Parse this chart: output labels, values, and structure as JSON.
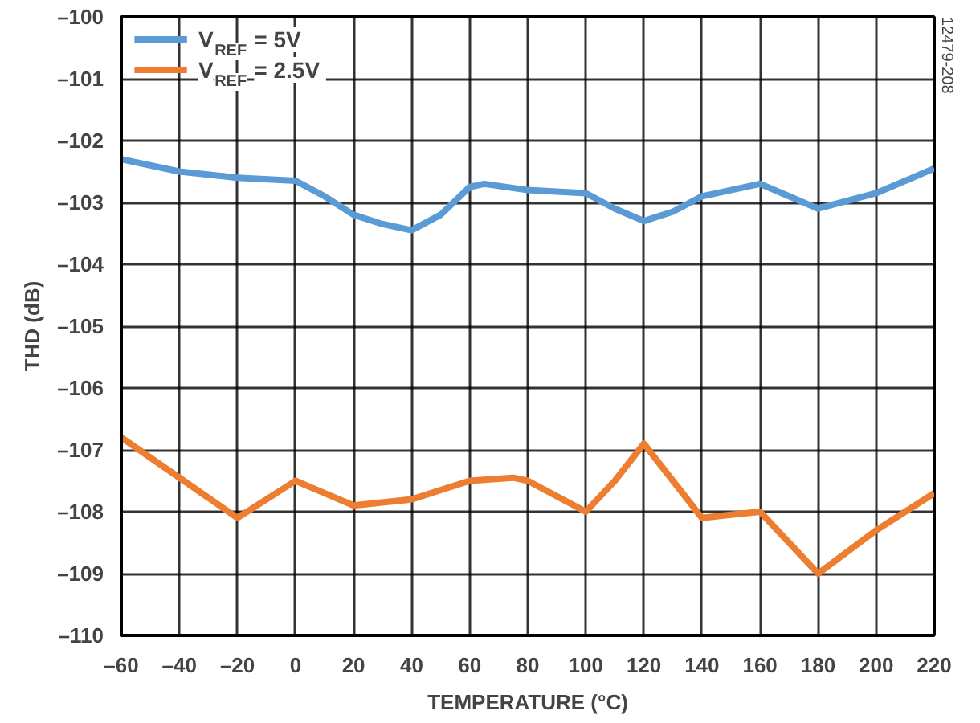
{
  "chart_data": {
    "type": "line",
    "xlabel": "TEMPERATURE (°C)",
    "ylabel": "THD (dB)",
    "series": [
      {
        "name": "V$_{REF}$ = 5V",
        "color": "#5b9bd5",
        "x": [
          -60,
          -40,
          -20,
          0,
          10,
          20,
          30,
          40,
          50,
          60,
          65,
          80,
          100,
          110,
          120,
          130,
          140,
          160,
          170,
          180,
          200,
          220
        ],
        "values": [
          -102.3,
          -102.5,
          -102.6,
          -102.65,
          -102.9,
          -103.2,
          -103.35,
          -103.45,
          -103.2,
          -102.75,
          -102.7,
          -102.8,
          -102.85,
          -103.1,
          -103.3,
          -103.15,
          -102.9,
          -102.7,
          -102.9,
          -103.1,
          -102.85,
          -102.45
        ]
      },
      {
        "name": "V$_{REF}$ = 2.5V",
        "color": "#ed7d31",
        "x": [
          -60,
          -40,
          -20,
          -10,
          0,
          10,
          20,
          40,
          60,
          75,
          80,
          90,
          100,
          110,
          120,
          130,
          140,
          150,
          160,
          170,
          180,
          200,
          220
        ],
        "values": [
          -106.8,
          -107.45,
          -108.1,
          -107.8,
          -107.5,
          -107.7,
          -107.9,
          -107.8,
          -107.5,
          -107.45,
          -107.5,
          -107.75,
          -108.0,
          -107.5,
          -106.9,
          -107.5,
          -108.1,
          -108.05,
          -108.0,
          -108.5,
          -109.0,
          -108.3,
          -107.7
        ]
      }
    ],
    "xlim": [
      -60,
      220
    ],
    "xticks": [
      {
        "value": -60,
        "label": "–60"
      },
      {
        "value": -40,
        "label": "–40"
      },
      {
        "value": -20,
        "label": "–20"
      },
      0,
      20,
      40,
      60,
      80,
      100,
      120,
      140,
      160,
      180,
      200,
      220
    ],
    "ylim": [
      -110,
      -100
    ],
    "yticks": [
      {
        "value": -110,
        "label": "–110"
      },
      {
        "value": -109,
        "label": "–109"
      },
      {
        "value": -108,
        "label": "–108"
      },
      {
        "value": -107,
        "label": "–107"
      },
      {
        "value": -106,
        "label": "–106"
      },
      {
        "value": -105,
        "label": "–105"
      },
      {
        "value": -104,
        "label": "–104"
      },
      {
        "value": -103,
        "label": "–103"
      },
      {
        "value": -102,
        "label": "–102"
      },
      {
        "value": -101,
        "label": "–101"
      },
      {
        "value": -100,
        "label": "–100"
      }
    ],
    "grid": true,
    "legend": "top left",
    "line_style": "solid",
    "annotations": [
      "12479-208"
    ]
  }
}
